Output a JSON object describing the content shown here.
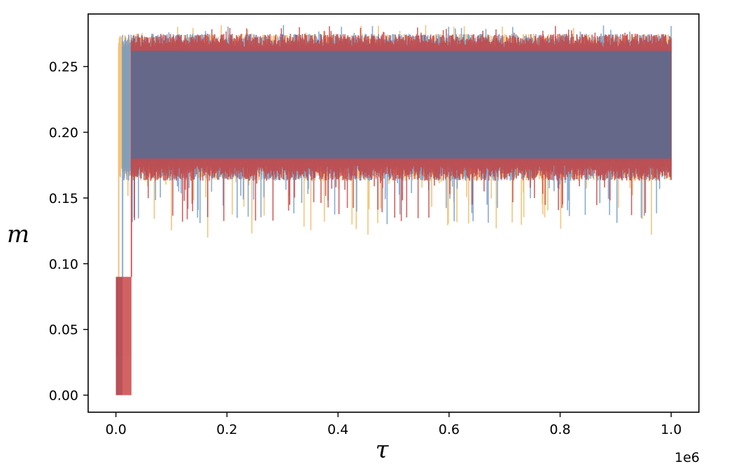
{
  "chart_data": {
    "type": "line",
    "title": "",
    "xlabel": "τ",
    "ylabel": "m",
    "x_offset_text": "1e6",
    "xlim": [
      -0.05,
      1.05
    ],
    "ylim": [
      -0.013,
      0.29
    ],
    "xticks": [
      0.0,
      0.2,
      0.4,
      0.6,
      0.8,
      1.0
    ],
    "xtick_labels": [
      "0.0",
      "0.2",
      "0.4",
      "0.6",
      "0.8",
      "1.0"
    ],
    "yticks": [
      0.0,
      0.05,
      0.1,
      0.15,
      0.2,
      0.25
    ],
    "ytick_labels": [
      "0.00",
      "0.05",
      "0.10",
      "0.15",
      "0.20",
      "0.25"
    ],
    "grid": false,
    "legend": "none",
    "series": [
      {
        "color": "#f0b050",
        "rise_end": 0.005,
        "pre_rise_value": 0.0,
        "band_center": 0.219,
        "band_low": 0.175,
        "band_high": 0.265,
        "min": 0.118,
        "max": 0.282
      },
      {
        "color": "#6a96c8",
        "rise_end": 0.012,
        "pre_rise_value": 0.0,
        "band_center": 0.219,
        "band_low": 0.175,
        "band_high": 0.265,
        "min": 0.13,
        "max": 0.282
      },
      {
        "color": "#c83c3c",
        "rise_end": 0.028,
        "pre_rise_value": 0.0,
        "band_center": 0.219,
        "band_low": 0.175,
        "band_high": 0.265,
        "min": 0.132,
        "max": 0.281
      }
    ],
    "overlap_color": "#5e6a8e"
  }
}
